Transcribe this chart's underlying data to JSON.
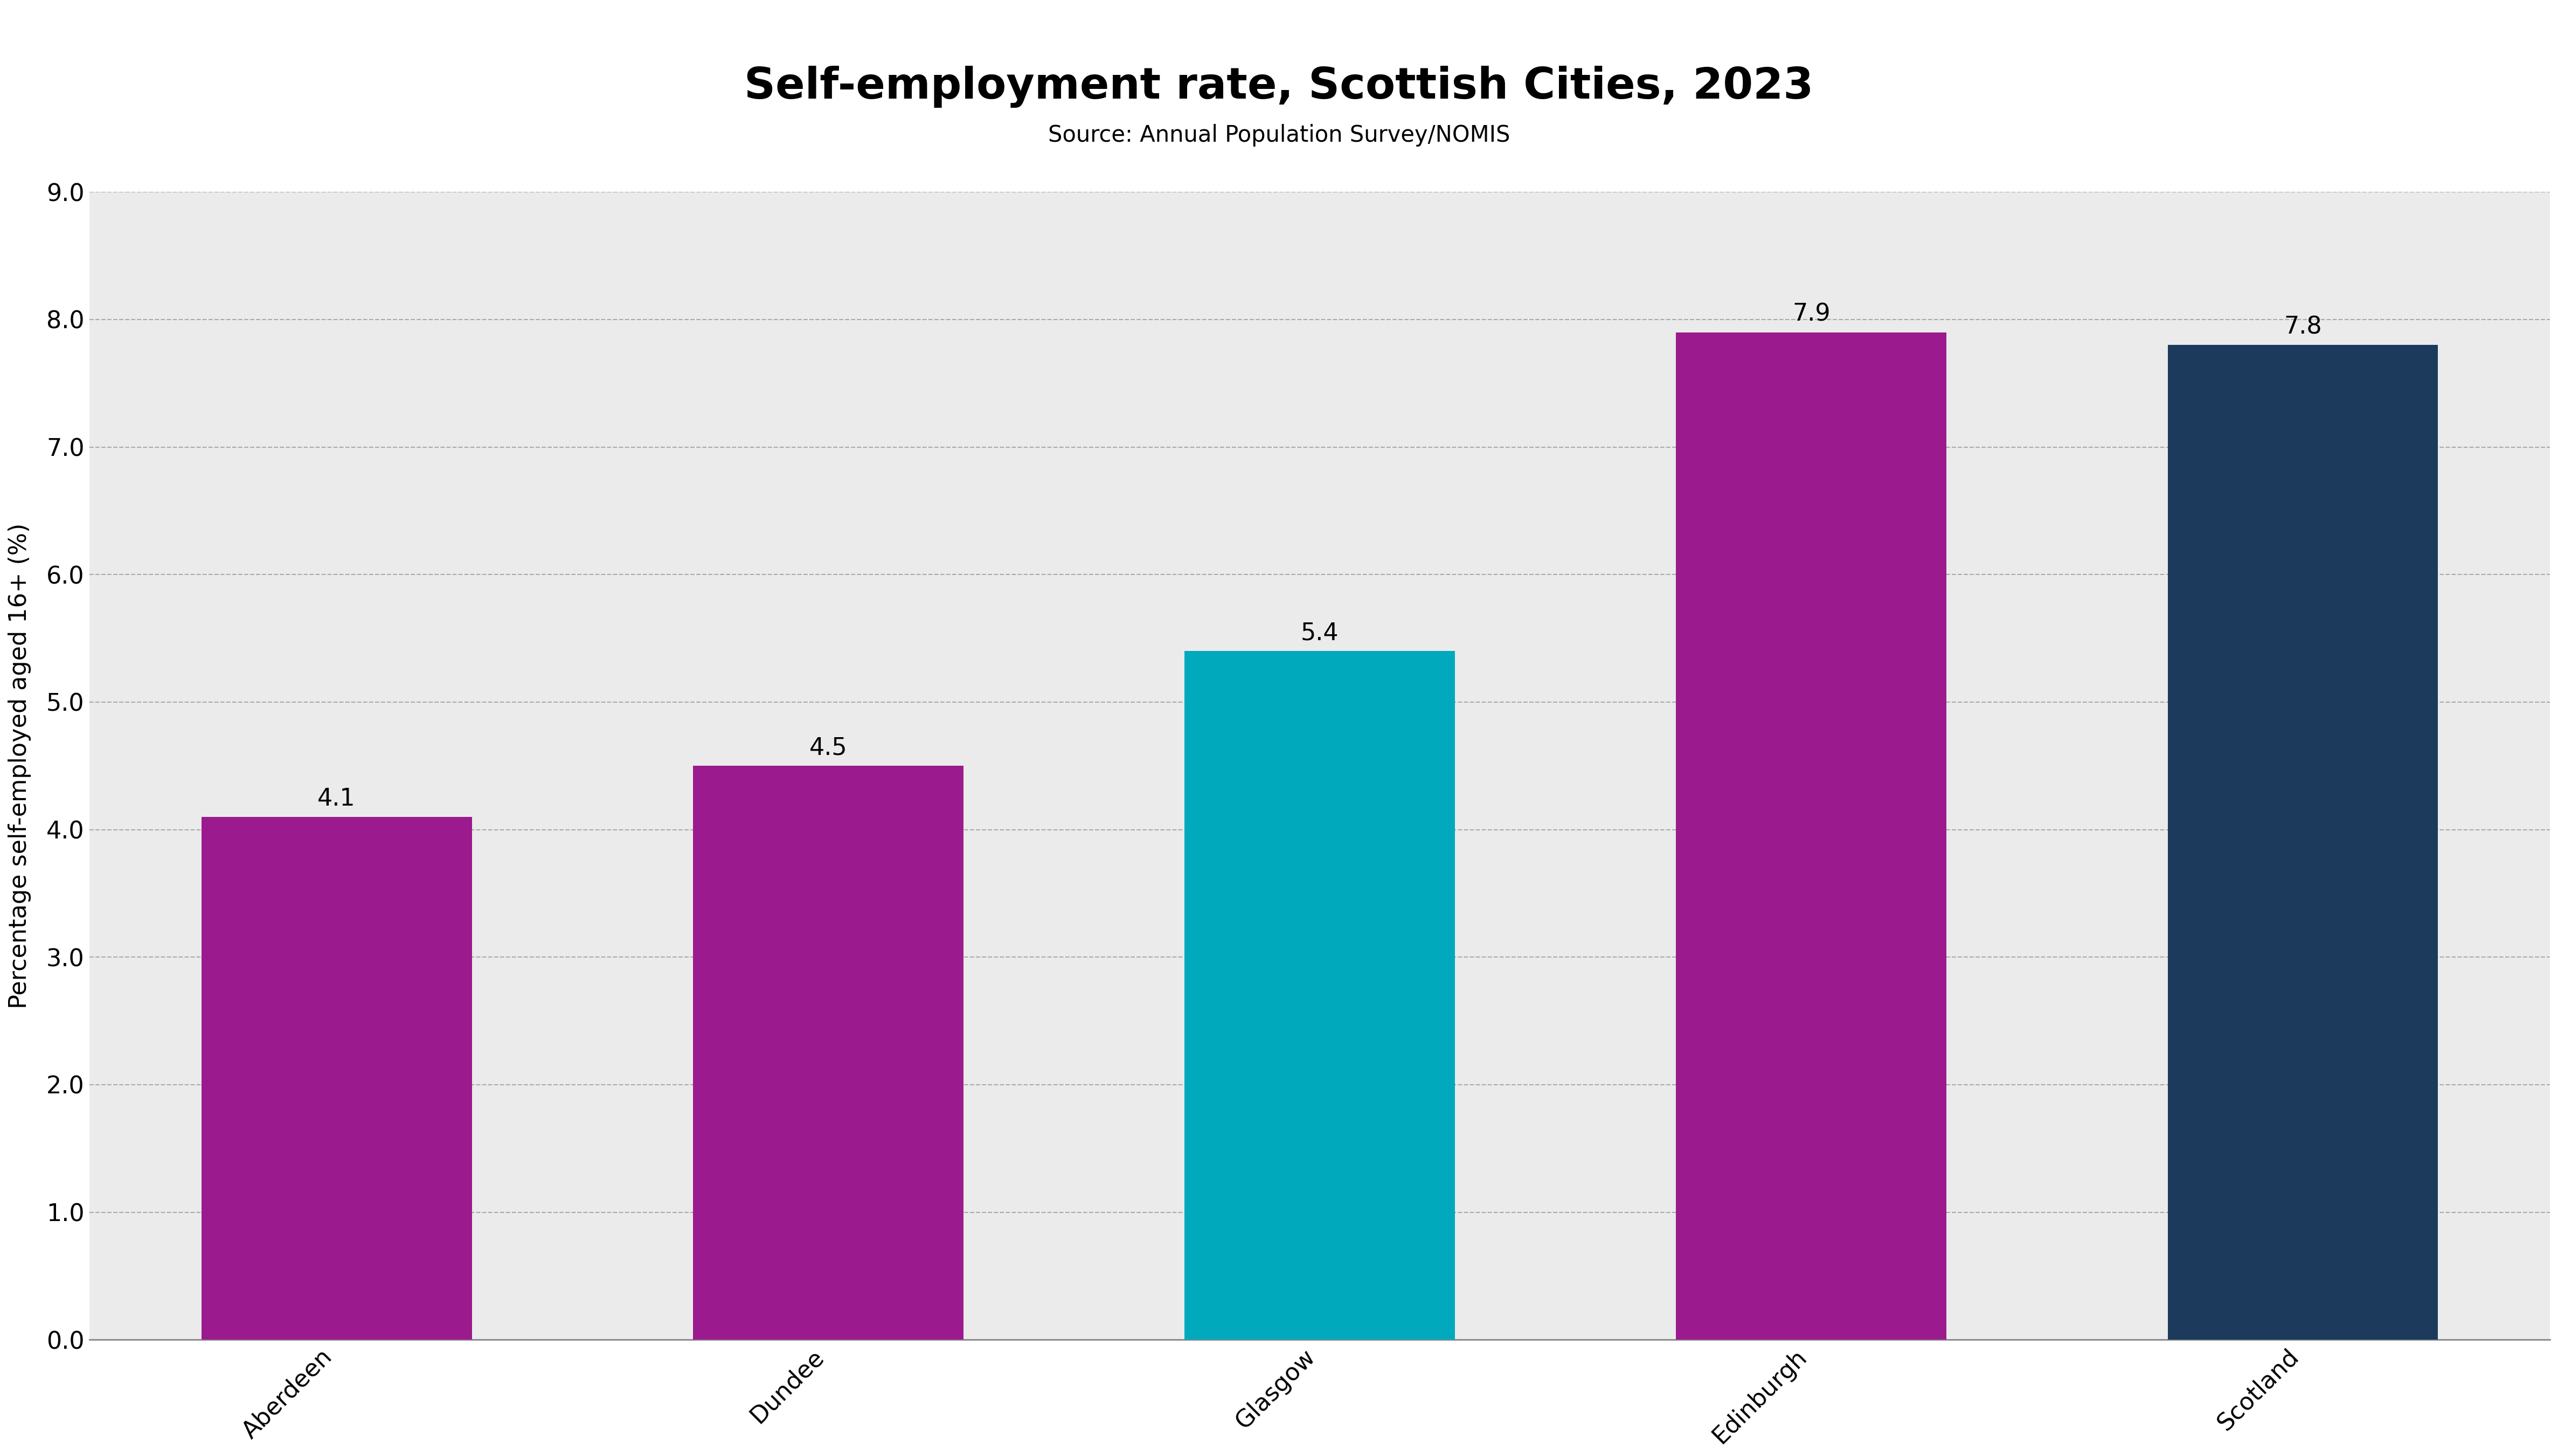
{
  "categories": [
    "Aberdeen",
    "Dundee",
    "Glasgow",
    "Edinburgh",
    "Scotland"
  ],
  "values": [
    4.1,
    4.5,
    5.4,
    7.9,
    7.8
  ],
  "bar_colors": [
    "#9B1B8E",
    "#9B1B8E",
    "#00AABC",
    "#9B1B8E",
    "#1B3A5C"
  ],
  "title": "Self-employment rate, Scottish Cities, 2023",
  "subtitle": "Source: Annual Population Survey/NOMIS",
  "ylabel": "Percentage self-employed aged 16+ (%)",
  "ylim": [
    0,
    9.0
  ],
  "yticks": [
    0.0,
    1.0,
    2.0,
    3.0,
    4.0,
    5.0,
    6.0,
    7.0,
    8.0,
    9.0
  ],
  "background_color": "#EBEBEB",
  "fig_background_color": "#FFFFFF",
  "title_fontsize": 58,
  "subtitle_fontsize": 30,
  "ylabel_fontsize": 32,
  "tick_fontsize": 32,
  "label_fontsize": 32,
  "bar_width": 0.55
}
